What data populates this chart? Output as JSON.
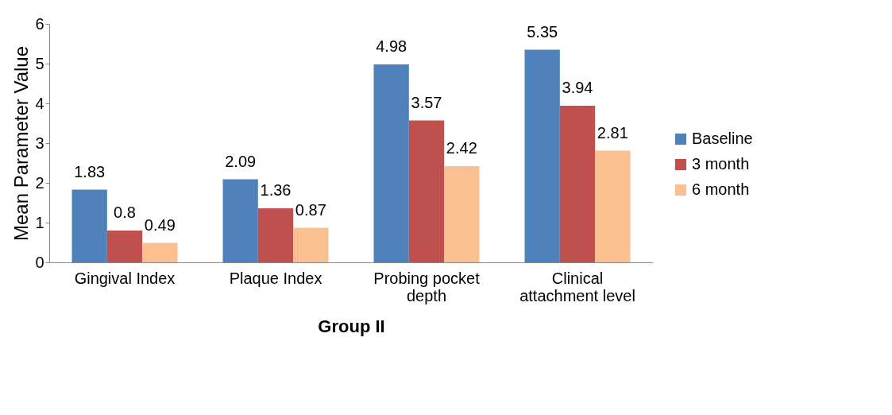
{
  "chart_data": {
    "type": "bar",
    "xlabel": "Group II",
    "ylabel": "Mean Parameter Value",
    "categories": [
      "Gingival Index",
      "Plaque Index",
      "Probing pocket depth",
      "Clinical attachment level"
    ],
    "series": [
      {
        "name": "Baseline",
        "color": "#4f81bd",
        "values": [
          1.83,
          2.09,
          4.98,
          5.35
        ]
      },
      {
        "name": "3 month",
        "color": "#c0504d",
        "values": [
          0.8,
          1.36,
          3.57,
          3.94
        ]
      },
      {
        "name": "6 month",
        "color": "#fac090",
        "values": [
          0.49,
          0.87,
          2.42,
          2.81
        ]
      }
    ],
    "ylim": [
      0,
      6
    ],
    "yticks": [
      0,
      1,
      2,
      3,
      4,
      5,
      6
    ],
    "grid": false,
    "legend": "right",
    "data_labels": true
  }
}
